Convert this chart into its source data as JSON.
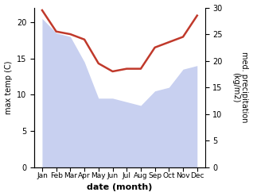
{
  "months": [
    "Jan",
    "Feb",
    "Mar",
    "Apr",
    "May",
    "Jun",
    "Jul",
    "Aug",
    "Sep",
    "Oct",
    "Nov",
    "Dec"
  ],
  "max_temp": [
    20.5,
    18.5,
    18.0,
    14.5,
    9.5,
    9.5,
    9.0,
    8.5,
    10.5,
    11.0,
    13.5,
    14.0
  ],
  "precipitation": [
    29.5,
    25.5,
    25.0,
    24.0,
    19.5,
    18.0,
    18.5,
    18.5,
    22.5,
    23.5,
    24.5,
    28.5
  ],
  "temp_fill_color": "#c8d0f0",
  "precip_line_color": "#c0392b",
  "left_ylabel": "max temp (C)",
  "right_ylabel": "med. precipitation\n(kg/m2)",
  "xlabel": "date (month)",
  "ylim_temp": [
    0,
    22
  ],
  "ylim_precip": [
    0,
    30
  ],
  "yticks_temp": [
    0,
    5,
    10,
    15,
    20
  ],
  "yticks_precip": [
    0,
    5,
    10,
    15,
    20,
    25,
    30
  ],
  "bg_color": "#ffffff"
}
